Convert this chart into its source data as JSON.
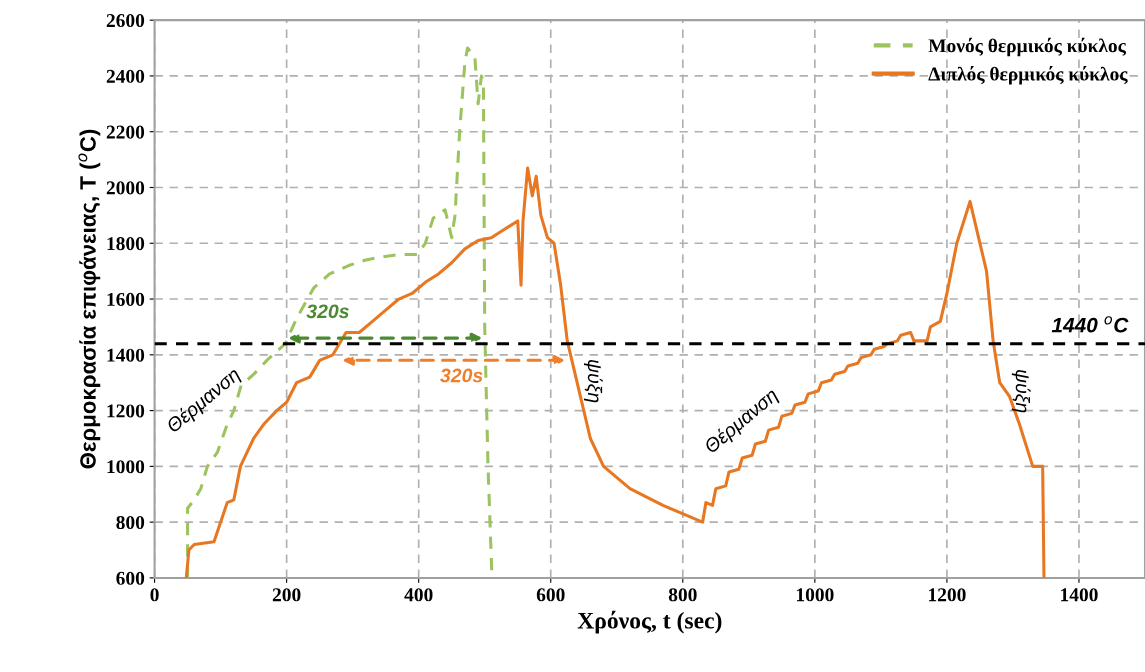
{
  "chart_data": {
    "type": "line",
    "xlabel": "Χρόνος, t (sec)",
    "ylabel": "Θερμοκρασία επιφάνειας, T ($^{o}$C)",
    "xlim": [
      0,
      1500
    ],
    "xticks": [
      0,
      200,
      400,
      600,
      800,
      1000,
      1200,
      1400
    ],
    "ylim": [
      600,
      2600
    ],
    "yticks": [
      600,
      800,
      1000,
      1200,
      1400,
      1600,
      1800,
      2000,
      2200,
      2400,
      2600
    ],
    "grid": true,
    "legend": "top right",
    "marker": "none",
    "series": [
      {
        "name": "Μονός θερμικός κύκλος",
        "color": "#9dc35f",
        "line_style": "dashed",
        "x": [
          50,
          50,
          60,
          70,
          80,
          95,
          110,
          120,
          131,
          150,
          170,
          198,
          215,
          241,
          265,
          294,
          320,
          341,
          370,
          398,
          410,
          422,
          440,
          450,
          455,
          462,
          470,
          474,
          485,
          490,
          495,
          498,
          500,
          505,
          511
        ],
        "values": [
          600,
          850,
          880,
          920,
          1000,
          1050,
          1150,
          1200,
          1290,
          1330,
          1380,
          1440,
          1530,
          1640,
          1690,
          1720,
          1740,
          1750,
          1760,
          1760,
          1800,
          1890,
          1920,
          1820,
          1900,
          2200,
          2450,
          2500,
          2470,
          2300,
          2400,
          2380,
          1500,
          1000,
          600
        ]
      },
      {
        "name": "Διπλός θερμικός κύκλος",
        "color": "#e87722",
        "line_style": "solid",
        "x": [
          48,
          52,
          60,
          90,
          100,
          110,
          120,
          130,
          140,
          150,
          165,
          185,
          200,
          215,
          235,
          250,
          270,
          290,
          310,
          330,
          350,
          370,
          390,
          410,
          430,
          450,
          470,
          490,
          510,
          530,
          550,
          555,
          558,
          565,
          572,
          578,
          585,
          595,
          605,
          615,
          625,
          640,
          660,
          680,
          720,
          770,
          830,
          835,
          845,
          850,
          865,
          870,
          885,
          890,
          905,
          910,
          925,
          930,
          945,
          950,
          965,
          970,
          985,
          990,
          1005,
          1010,
          1025,
          1030,
          1045,
          1050,
          1065,
          1070,
          1085,
          1090,
          1105,
          1110,
          1125,
          1130,
          1145,
          1150,
          1170,
          1175,
          1190,
          1200,
          1215,
          1235,
          1245,
          1260,
          1270,
          1280,
          1295,
          1310,
          1330,
          1345,
          1347
        ],
        "values": [
          600,
          700,
          720,
          730,
          800,
          870,
          880,
          1000,
          1050,
          1100,
          1150,
          1200,
          1230,
          1300,
          1320,
          1380,
          1400,
          1480,
          1480,
          1520,
          1560,
          1600,
          1620,
          1660,
          1690,
          1730,
          1780,
          1810,
          1820,
          1850,
          1880,
          1650,
          1880,
          2070,
          1970,
          2040,
          1900,
          1820,
          1800,
          1650,
          1450,
          1300,
          1100,
          1000,
          920,
          860,
          800,
          870,
          860,
          920,
          930,
          980,
          990,
          1030,
          1040,
          1080,
          1090,
          1130,
          1140,
          1180,
          1190,
          1220,
          1230,
          1260,
          1270,
          1300,
          1310,
          1330,
          1340,
          1360,
          1370,
          1390,
          1400,
          1420,
          1430,
          1440,
          1450,
          1470,
          1480,
          1450,
          1450,
          1500,
          1520,
          1620,
          1800,
          1950,
          1850,
          1700,
          1450,
          1300,
          1250,
          1150,
          1000,
          1000,
          600
        ]
      }
    ],
    "ref_lines": [
      {
        "axis": "y",
        "value": 1440,
        "label": "1440 $^{o}$C",
        "color": "#000000",
        "line_style": "dashed"
      }
    ],
    "annotations": [
      "320s",
      "320s",
      "Θέρμανση",
      "ψύξη",
      "Θέρμανση",
      "ψύξη"
    ]
  }
}
